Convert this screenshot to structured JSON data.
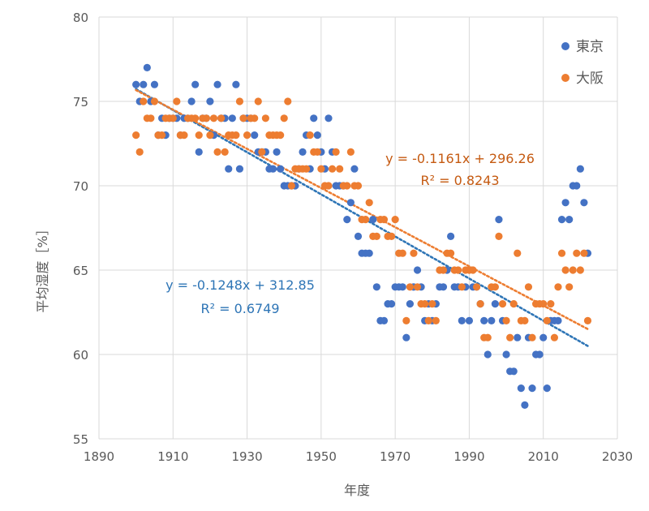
{
  "chart_data": {
    "type": "scatter",
    "xlabel": "年度",
    "ylabel": "平均湿度［%］",
    "xlim": [
      1890,
      2030
    ],
    "ylim": [
      55,
      80
    ],
    "xticks": [
      "1890",
      "1910",
      "1930",
      "1950",
      "1970",
      "1990",
      "2010",
      "2030"
    ],
    "yticks": [
      "55",
      "60",
      "65",
      "70",
      "75",
      "80"
    ],
    "grid": "vertical and horizontal",
    "legend_position": "top-right",
    "colors": {
      "tokyo": "#4472c4",
      "osaka": "#ed7d31",
      "tokyo_eq": "#2e75b6",
      "osaka_eq": "#c55a11",
      "grid": "#d9d9d9"
    },
    "series": [
      {
        "name": "東京",
        "color": "#4472c4",
        "points": [
          [
            1900,
            76
          ],
          [
            1901,
            75
          ],
          [
            1902,
            76
          ],
          [
            1903,
            77
          ],
          [
            1904,
            75
          ],
          [
            1905,
            76
          ],
          [
            1906,
            73
          ],
          [
            1907,
            74
          ],
          [
            1908,
            73
          ],
          [
            1909,
            74
          ],
          [
            1910,
            74
          ],
          [
            1911,
            74
          ],
          [
            1912,
            73
          ],
          [
            1913,
            74
          ],
          [
            1914,
            74
          ],
          [
            1915,
            75
          ],
          [
            1916,
            76
          ],
          [
            1917,
            72
          ],
          [
            1918,
            74
          ],
          [
            1919,
            74
          ],
          [
            1920,
            75
          ],
          [
            1921,
            73
          ],
          [
            1922,
            76
          ],
          [
            1923,
            74
          ],
          [
            1924,
            74
          ],
          [
            1925,
            71
          ],
          [
            1926,
            74
          ],
          [
            1927,
            76
          ],
          [
            1928,
            71
          ],
          [
            1929,
            74
          ],
          [
            1930,
            74
          ],
          [
            1931,
            74
          ],
          [
            1932,
            73
          ],
          [
            1933,
            72
          ],
          [
            1934,
            72
          ],
          [
            1935,
            72
          ],
          [
            1936,
            71
          ],
          [
            1937,
            71
          ],
          [
            1938,
            72
          ],
          [
            1939,
            71
          ],
          [
            1940,
            70
          ],
          [
            1941,
            70
          ],
          [
            1942,
            70
          ],
          [
            1943,
            70
          ],
          [
            1944,
            71
          ],
          [
            1945,
            72
          ],
          [
            1946,
            73
          ],
          [
            1947,
            71
          ],
          [
            1948,
            74
          ],
          [
            1949,
            73
          ],
          [
            1950,
            72
          ],
          [
            1951,
            71
          ],
          [
            1952,
            74
          ],
          [
            1953,
            72
          ],
          [
            1954,
            70
          ],
          [
            1955,
            70
          ],
          [
            1956,
            70
          ],
          [
            1957,
            68
          ],
          [
            1958,
            69
          ],
          [
            1959,
            71
          ],
          [
            1960,
            67
          ],
          [
            1961,
            66
          ],
          [
            1962,
            66
          ],
          [
            1963,
            66
          ],
          [
            1964,
            68
          ],
          [
            1965,
            64
          ],
          [
            1966,
            62
          ],
          [
            1967,
            62
          ],
          [
            1968,
            63
          ],
          [
            1969,
            63
          ],
          [
            1970,
            64
          ],
          [
            1971,
            64
          ],
          [
            1972,
            64
          ],
          [
            1973,
            61
          ],
          [
            1974,
            63
          ],
          [
            1975,
            64
          ],
          [
            1976,
            65
          ],
          [
            1977,
            64
          ],
          [
            1978,
            62
          ],
          [
            1979,
            63
          ],
          [
            1980,
            62
          ],
          [
            1981,
            63
          ],
          [
            1982,
            64
          ],
          [
            1983,
            64
          ],
          [
            1984,
            65
          ],
          [
            1985,
            67
          ],
          [
            1986,
            64
          ],
          [
            1987,
            64
          ],
          [
            1988,
            62
          ],
          [
            1989,
            64
          ],
          [
            1990,
            62
          ],
          [
            1991,
            64
          ],
          [
            1992,
            64
          ],
          [
            1993,
            63
          ],
          [
            1994,
            62
          ],
          [
            1995,
            60
          ],
          [
            1996,
            62
          ],
          [
            1997,
            63
          ],
          [
            1998,
            68
          ],
          [
            1999,
            62
          ],
          [
            2000,
            60
          ],
          [
            2001,
            59
          ],
          [
            2002,
            59
          ],
          [
            2003,
            61
          ],
          [
            2004,
            58
          ],
          [
            2005,
            57
          ],
          [
            2006,
            61
          ],
          [
            2007,
            58
          ],
          [
            2008,
            60
          ],
          [
            2009,
            60
          ],
          [
            2010,
            61
          ],
          [
            2011,
            58
          ],
          [
            2012,
            62
          ],
          [
            2013,
            62
          ],
          [
            2014,
            62
          ],
          [
            2015,
            68
          ],
          [
            2016,
            69
          ],
          [
            2017,
            68
          ],
          [
            2018,
            70
          ],
          [
            2019,
            70
          ],
          [
            2020,
            71
          ],
          [
            2021,
            69
          ],
          [
            2022,
            66
          ]
        ],
        "trendline": {
          "slope": -0.1248,
          "intercept": 312.85,
          "equation": "y = -0.1248x + 312.85",
          "r2": "R² = 0.6749"
        }
      },
      {
        "name": "大阪",
        "color": "#ed7d31",
        "points": [
          [
            1900,
            73
          ],
          [
            1901,
            72
          ],
          [
            1902,
            75
          ],
          [
            1903,
            74
          ],
          [
            1904,
            74
          ],
          [
            1905,
            75
          ],
          [
            1906,
            73
          ],
          [
            1907,
            73
          ],
          [
            1908,
            74
          ],
          [
            1909,
            74
          ],
          [
            1910,
            74
          ],
          [
            1911,
            75
          ],
          [
            1912,
            73
          ],
          [
            1913,
            73
          ],
          [
            1914,
            74
          ],
          [
            1915,
            74
          ],
          [
            1916,
            74
          ],
          [
            1917,
            73
          ],
          [
            1918,
            74
          ],
          [
            1919,
            74
          ],
          [
            1920,
            73
          ],
          [
            1921,
            74
          ],
          [
            1922,
            72
          ],
          [
            1923,
            74
          ],
          [
            1924,
            72
          ],
          [
            1925,
            73
          ],
          [
            1926,
            73
          ],
          [
            1927,
            73
          ],
          [
            1928,
            75
          ],
          [
            1929,
            74
          ],
          [
            1930,
            73
          ],
          [
            1931,
            74
          ],
          [
            1932,
            74
          ],
          [
            1933,
            75
          ],
          [
            1934,
            72
          ],
          [
            1935,
            74
          ],
          [
            1936,
            73
          ],
          [
            1937,
            73
          ],
          [
            1938,
            73
          ],
          [
            1939,
            73
          ],
          [
            1940,
            74
          ],
          [
            1941,
            75
          ],
          [
            1942,
            70
          ],
          [
            1943,
            71
          ],
          [
            1944,
            71
          ],
          [
            1945,
            71
          ],
          [
            1946,
            71
          ],
          [
            1947,
            73
          ],
          [
            1948,
            72
          ],
          [
            1949,
            72
          ],
          [
            1950,
            71
          ],
          [
            1951,
            70
          ],
          [
            1952,
            70
          ],
          [
            1953,
            71
          ],
          [
            1954,
            72
          ],
          [
            1955,
            71
          ],
          [
            1956,
            70
          ],
          [
            1957,
            70
          ],
          [
            1958,
            72
          ],
          [
            1959,
            70
          ],
          [
            1960,
            70
          ],
          [
            1961,
            68
          ],
          [
            1962,
            68
          ],
          [
            1963,
            69
          ],
          [
            1964,
            67
          ],
          [
            1965,
            67
          ],
          [
            1966,
            68
          ],
          [
            1967,
            68
          ],
          [
            1968,
            67
          ],
          [
            1969,
            67
          ],
          [
            1970,
            68
          ],
          [
            1971,
            66
          ],
          [
            1972,
            66
          ],
          [
            1973,
            62
          ],
          [
            1974,
            64
          ],
          [
            1975,
            66
          ],
          [
            1976,
            64
          ],
          [
            1977,
            63
          ],
          [
            1978,
            63
          ],
          [
            1979,
            62
          ],
          [
            1980,
            63
          ],
          [
            1981,
            62
          ],
          [
            1982,
            65
          ],
          [
            1983,
            65
          ],
          [
            1984,
            66
          ],
          [
            1985,
            66
          ],
          [
            1986,
            65
          ],
          [
            1987,
            65
          ],
          [
            1988,
            64
          ],
          [
            1989,
            65
          ],
          [
            1990,
            65
          ],
          [
            1991,
            65
          ],
          [
            1992,
            64
          ],
          [
            1993,
            63
          ],
          [
            1994,
            61
          ],
          [
            1995,
            61
          ],
          [
            1996,
            64
          ],
          [
            1997,
            64
          ],
          [
            1998,
            67
          ],
          [
            1999,
            63
          ],
          [
            2000,
            62
          ],
          [
            2001,
            61
          ],
          [
            2002,
            63
          ],
          [
            2003,
            66
          ],
          [
            2004,
            62
          ],
          [
            2005,
            62
          ],
          [
            2006,
            64
          ],
          [
            2007,
            61
          ],
          [
            2008,
            63
          ],
          [
            2009,
            63
          ],
          [
            2010,
            63
          ],
          [
            2011,
            62
          ],
          [
            2012,
            63
          ],
          [
            2013,
            61
          ],
          [
            2014,
            64
          ],
          [
            2015,
            66
          ],
          [
            2016,
            65
          ],
          [
            2017,
            64
          ],
          [
            2018,
            65
          ],
          [
            2019,
            66
          ],
          [
            2020,
            65
          ],
          [
            2021,
            66
          ],
          [
            2022,
            62
          ]
        ],
        "trendline": {
          "slope": -0.1161,
          "intercept": 296.26,
          "equation": "y = -0.1161x + 296.26",
          "r2": "R² = 0.8243"
        }
      }
    ]
  }
}
